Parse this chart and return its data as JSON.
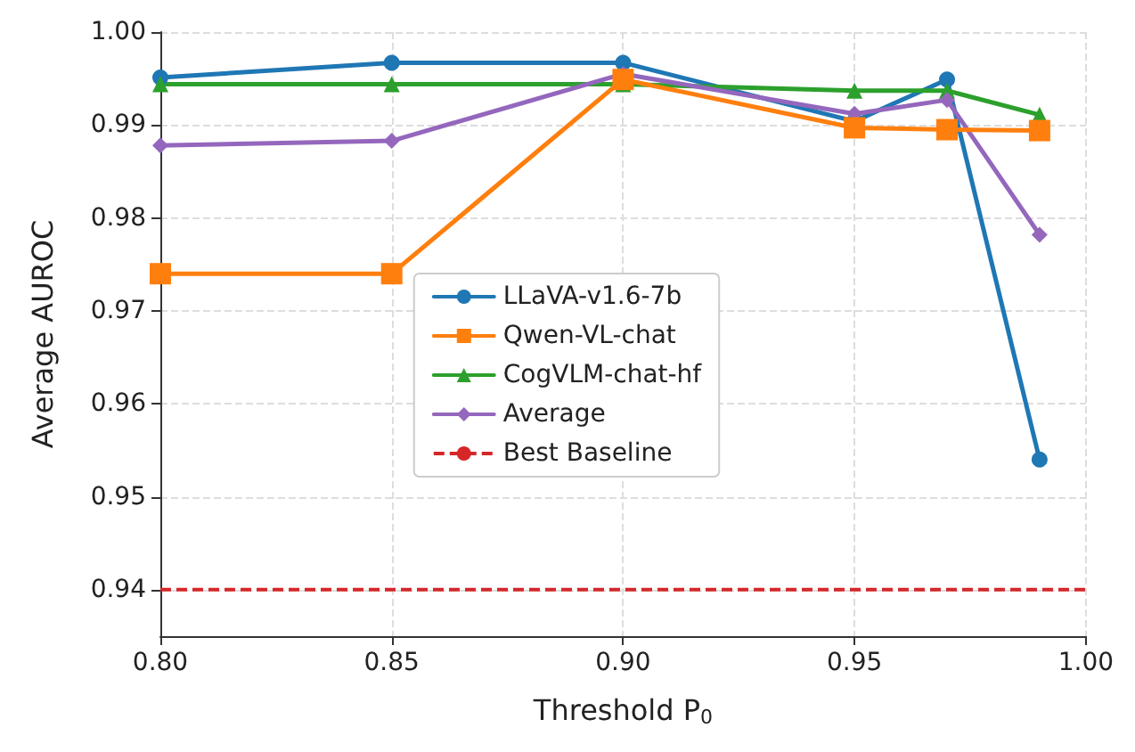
{
  "chart_data": {
    "type": "line",
    "xlabel": "Threshold P$_{0}$",
    "ylabel": "Average AUROC",
    "x": [
      0.8,
      0.85,
      0.9,
      0.95,
      0.97,
      0.99
    ],
    "series": [
      {
        "name": "LLaVA-v1.6-7b",
        "color": "#1f77b4",
        "marker": "circle",
        "values": [
          0.9951,
          0.9967,
          0.9967,
          0.9904,
          0.9949,
          0.954
        ]
      },
      {
        "name": "Qwen-VL-chat",
        "color": "#ff7f0e",
        "marker": "square",
        "values": [
          0.974,
          0.974,
          0.9949,
          0.9897,
          0.9895,
          0.9894
        ]
      },
      {
        "name": "CogVLM-chat-hf",
        "color": "#2ca02c",
        "marker": "triangle",
        "values": [
          0.9944,
          0.9944,
          0.9944,
          0.9937,
          0.9937,
          0.9911
        ]
      },
      {
        "name": "Average",
        "color": "#9467bd",
        "marker": "diamond",
        "values": [
          0.9878,
          0.9883,
          0.9955,
          0.9912,
          0.9927,
          0.9782
        ]
      }
    ],
    "ref_lines": [
      {
        "axis": "y",
        "value": 0.94,
        "label": "Best Baseline",
        "color": "#d62728",
        "line_style": "dashed"
      }
    ],
    "xlim": [
      0.8,
      1.0
    ],
    "xticks": [
      {
        "value": 0.8,
        "label": "0.80"
      },
      {
        "value": 0.85,
        "label": "0.85"
      },
      {
        "value": 0.9,
        "label": "0.90"
      },
      {
        "value": 0.95,
        "label": "0.95"
      },
      {
        "value": 1.0,
        "label": "1.00"
      }
    ],
    "ylim": [
      0.935,
      1.0
    ],
    "yticks": [
      {
        "value": 0.94,
        "label": "0.94"
      },
      {
        "value": 0.95,
        "label": "0.95"
      },
      {
        "value": 0.96,
        "label": "0.96"
      },
      {
        "value": 0.97,
        "label": "0.97"
      },
      {
        "value": 0.98,
        "label": "0.98"
      },
      {
        "value": 0.99,
        "label": "0.99"
      },
      {
        "value": 1.0,
        "label": "1.00"
      }
    ],
    "grid": true,
    "legend": "center",
    "line_style": "solid"
  }
}
